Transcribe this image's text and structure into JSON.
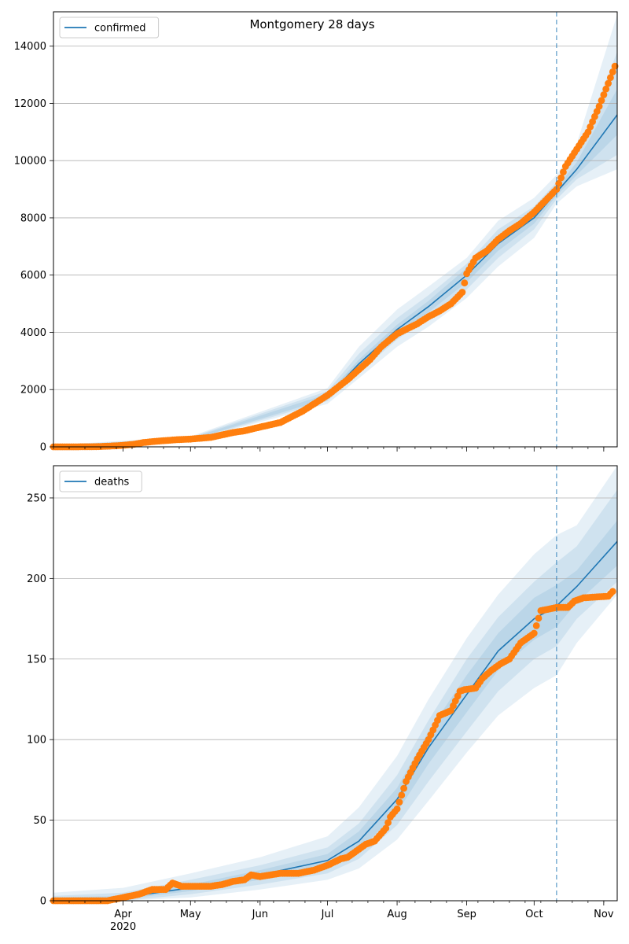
{
  "figure": {
    "title": "Montgomery 28 days"
  },
  "colors": {
    "model": "#1f77b4",
    "observed": "#ff7f0e",
    "band": "#1f77b4",
    "grid": "#b0b0b0",
    "forecast_line": "#1f77b4"
  },
  "chart_data": [
    {
      "type": "line",
      "legend": "confirmed",
      "legend_placement": "upper-left",
      "grid": "horizontal",
      "x_range": [
        "2020-03-01",
        "2020-11-07"
      ],
      "ylim": [
        0,
        15200
      ],
      "y_ticks": [
        0,
        2000,
        4000,
        6000,
        8000,
        10000,
        12000,
        14000
      ],
      "forecast_start": "2020-10-11",
      "model": {
        "x": [
          "2020-03-01",
          "2020-03-15",
          "2020-04-01",
          "2020-04-15",
          "2020-05-01",
          "2020-05-15",
          "2020-06-01",
          "2020-06-15",
          "2020-07-01",
          "2020-07-15",
          "2020-08-01",
          "2020-08-15",
          "2020-09-01",
          "2020-09-15",
          "2020-10-01",
          "2020-10-11",
          "2020-10-20",
          "2020-11-07"
        ],
        "y": [
          0,
          10,
          60,
          200,
          270,
          440,
          700,
          1000,
          1750,
          2900,
          4100,
          4900,
          6000,
          7100,
          8000,
          8900,
          9700,
          11600
        ]
      },
      "bands": [
        {
          "x": [
            "2020-03-01",
            "2020-05-01",
            "2020-07-01",
            "2020-07-15",
            "2020-08-01",
            "2020-08-15",
            "2020-09-01",
            "2020-09-15",
            "2020-10-01",
            "2020-10-11",
            "2020-10-20",
            "2020-11-07"
          ],
          "lower": [
            0,
            200,
            1500,
            2400,
            3500,
            4200,
            5200,
            6300,
            7300,
            8500,
            9100,
            9700
          ],
          "upper": [
            60,
            360,
            2050,
            3500,
            4800,
            5600,
            6600,
            7900,
            8700,
            9500,
            10600,
            15100
          ]
        },
        {
          "x": [
            "2020-03-01",
            "2020-05-01",
            "2020-07-01",
            "2020-07-15",
            "2020-08-01",
            "2020-08-15",
            "2020-09-01",
            "2020-09-15",
            "2020-10-01",
            "2020-10-11",
            "2020-10-20",
            "2020-11-07"
          ],
          "lower": [
            0,
            220,
            1600,
            2600,
            3750,
            4500,
            5500,
            6600,
            7600,
            8650,
            9350,
            10200
          ],
          "upper": [
            40,
            330,
            1950,
            3250,
            4500,
            5300,
            6400,
            7600,
            8400,
            9250,
            10200,
            13800
          ]
        },
        {
          "x": [
            "2020-03-01",
            "2020-05-01",
            "2020-07-01",
            "2020-07-15",
            "2020-08-01",
            "2020-08-15",
            "2020-09-01",
            "2020-09-15",
            "2020-10-01",
            "2020-10-11",
            "2020-10-20",
            "2020-11-07"
          ],
          "lower": [
            0,
            240,
            1680,
            2750,
            3930,
            4700,
            5750,
            6850,
            7800,
            8780,
            9500,
            10900
          ],
          "upper": [
            25,
            300,
            1850,
            3050,
            4270,
            5100,
            6250,
            7350,
            8200,
            9050,
            9950,
            12500
          ]
        }
      ],
      "observed": {
        "x": [
          "2020-03-01",
          "2020-03-10",
          "2020-03-20",
          "2020-03-30",
          "2020-04-06",
          "2020-04-10",
          "2020-04-15",
          "2020-04-20",
          "2020-04-25",
          "2020-05-01",
          "2020-05-10",
          "2020-05-20",
          "2020-05-25",
          "2020-06-01",
          "2020-06-10",
          "2020-06-20",
          "2020-06-25",
          "2020-07-01",
          "2020-07-10",
          "2020-07-20",
          "2020-07-25",
          "2020-08-01",
          "2020-08-10",
          "2020-08-15",
          "2020-08-20",
          "2020-08-25",
          "2020-08-30",
          "2020-09-01",
          "2020-09-05",
          "2020-09-10",
          "2020-09-15",
          "2020-09-20",
          "2020-09-25",
          "2020-10-01",
          "2020-10-06",
          "2020-10-11",
          "2020-10-15",
          "2020-10-20",
          "2020-10-25",
          "2020-10-30",
          "2020-11-03",
          "2020-11-06"
        ],
        "y": [
          0,
          0,
          5,
          40,
          90,
          150,
          190,
          220,
          250,
          270,
          330,
          500,
          560,
          690,
          850,
          1250,
          1500,
          1800,
          2350,
          3050,
          3500,
          3950,
          4300,
          4550,
          4750,
          5000,
          5400,
          6050,
          6600,
          6850,
          7250,
          7550,
          7800,
          8200,
          8600,
          9000,
          9800,
          10400,
          11000,
          11900,
          12700,
          13300
        ]
      }
    },
    {
      "type": "line",
      "legend": "deaths",
      "legend_placement": "upper-left",
      "grid": "horizontal",
      "x_range": [
        "2020-03-01",
        "2020-11-07"
      ],
      "ylim": [
        0,
        270
      ],
      "y_ticks": [
        0,
        50,
        100,
        150,
        200,
        250
      ],
      "forecast_start": "2020-10-11",
      "x_ticks": [
        {
          "date": "2020-04-01",
          "label": "Apr",
          "sublabel": "2020"
        },
        {
          "date": "2020-05-01",
          "label": "May"
        },
        {
          "date": "2020-06-01",
          "label": "Jun"
        },
        {
          "date": "2020-07-01",
          "label": "Jul"
        },
        {
          "date": "2020-08-01",
          "label": "Aug"
        },
        {
          "date": "2020-09-01",
          "label": "Sep"
        },
        {
          "date": "2020-10-01",
          "label": "Oct"
        },
        {
          "date": "2020-11-01",
          "label": "Nov"
        }
      ],
      "model": {
        "x": [
          "2020-03-01",
          "2020-04-01",
          "2020-05-01",
          "2020-06-01",
          "2020-07-01",
          "2020-07-15",
          "2020-08-01",
          "2020-08-15",
          "2020-09-01",
          "2020-09-15",
          "2020-10-01",
          "2020-10-11",
          "2020-10-20",
          "2020-11-07"
        ],
        "y": [
          0,
          2,
          8,
          16,
          25,
          37,
          63,
          95,
          128,
          155,
          175,
          183,
          195,
          223
        ]
      },
      "bands": [
        {
          "x": [
            "2020-03-01",
            "2020-04-01",
            "2020-05-01",
            "2020-06-01",
            "2020-07-01",
            "2020-07-15",
            "2020-08-01",
            "2020-08-15",
            "2020-09-01",
            "2020-09-15",
            "2020-10-01",
            "2020-10-11",
            "2020-10-20",
            "2020-11-07"
          ],
          "lower": [
            0,
            0,
            2,
            7,
            13,
            20,
            38,
            62,
            92,
            115,
            132,
            140,
            160,
            190
          ],
          "upper": [
            5,
            8,
            17,
            27,
            40,
            58,
            90,
            125,
            163,
            190,
            215,
            227,
            233,
            270
          ]
        },
        {
          "x": [
            "2020-03-01",
            "2020-04-01",
            "2020-05-01",
            "2020-06-01",
            "2020-07-01",
            "2020-07-15",
            "2020-08-01",
            "2020-08-15",
            "2020-09-01",
            "2020-09-15",
            "2020-10-01",
            "2020-10-11",
            "2020-10-20",
            "2020-11-07"
          ],
          "lower": [
            0,
            0,
            4,
            10,
            17,
            26,
            47,
            74,
            105,
            130,
            150,
            158,
            175,
            198
          ],
          "upper": [
            3,
            5,
            13,
            22,
            33,
            48,
            78,
            112,
            150,
            176,
            198,
            210,
            220,
            255
          ]
        },
        {
          "x": [
            "2020-03-01",
            "2020-04-01",
            "2020-05-01",
            "2020-06-01",
            "2020-07-01",
            "2020-07-15",
            "2020-08-01",
            "2020-08-15",
            "2020-09-01",
            "2020-09-15",
            "2020-10-01",
            "2020-10-11",
            "2020-10-20",
            "2020-11-07"
          ],
          "lower": [
            0,
            1,
            6,
            13,
            21,
            31,
            55,
            85,
            117,
            143,
            162,
            170,
            185,
            208
          ],
          "upper": [
            2,
            3,
            10,
            19,
            29,
            43,
            70,
            105,
            140,
            166,
            188,
            196,
            205,
            236
          ]
        }
      ],
      "observed": {
        "x": [
          "2020-03-01",
          "2020-03-25",
          "2020-04-01",
          "2020-04-08",
          "2020-04-14",
          "2020-04-20",
          "2020-04-23",
          "2020-04-27",
          "2020-05-01",
          "2020-05-10",
          "2020-05-15",
          "2020-05-20",
          "2020-05-25",
          "2020-05-28",
          "2020-06-01",
          "2020-06-10",
          "2020-06-18",
          "2020-06-25",
          "2020-07-01",
          "2020-07-07",
          "2020-07-10",
          "2020-07-18",
          "2020-07-22",
          "2020-07-27",
          "2020-07-29",
          "2020-08-01",
          "2020-08-05",
          "2020-08-10",
          "2020-08-15",
          "2020-08-20",
          "2020-08-25",
          "2020-08-29",
          "2020-08-31",
          "2020-09-05",
          "2020-09-08",
          "2020-09-12",
          "2020-09-16",
          "2020-09-20",
          "2020-09-25",
          "2020-09-30",
          "2020-10-01",
          "2020-10-04",
          "2020-10-11",
          "2020-10-16",
          "2020-10-19",
          "2020-10-23",
          "2020-11-03",
          "2020-11-05"
        ],
        "y": [
          0,
          0,
          2,
          4,
          7,
          7,
          11,
          9,
          9,
          9,
          10,
          12,
          13,
          16,
          15,
          17,
          17,
          19,
          22,
          26,
          27,
          35,
          37,
          45,
          52,
          57,
          74,
          88,
          100,
          115,
          118,
          130,
          131,
          132,
          138,
          143,
          147,
          150,
          160,
          165,
          166,
          180,
          182,
          182,
          186,
          188,
          189,
          192
        ]
      }
    }
  ]
}
